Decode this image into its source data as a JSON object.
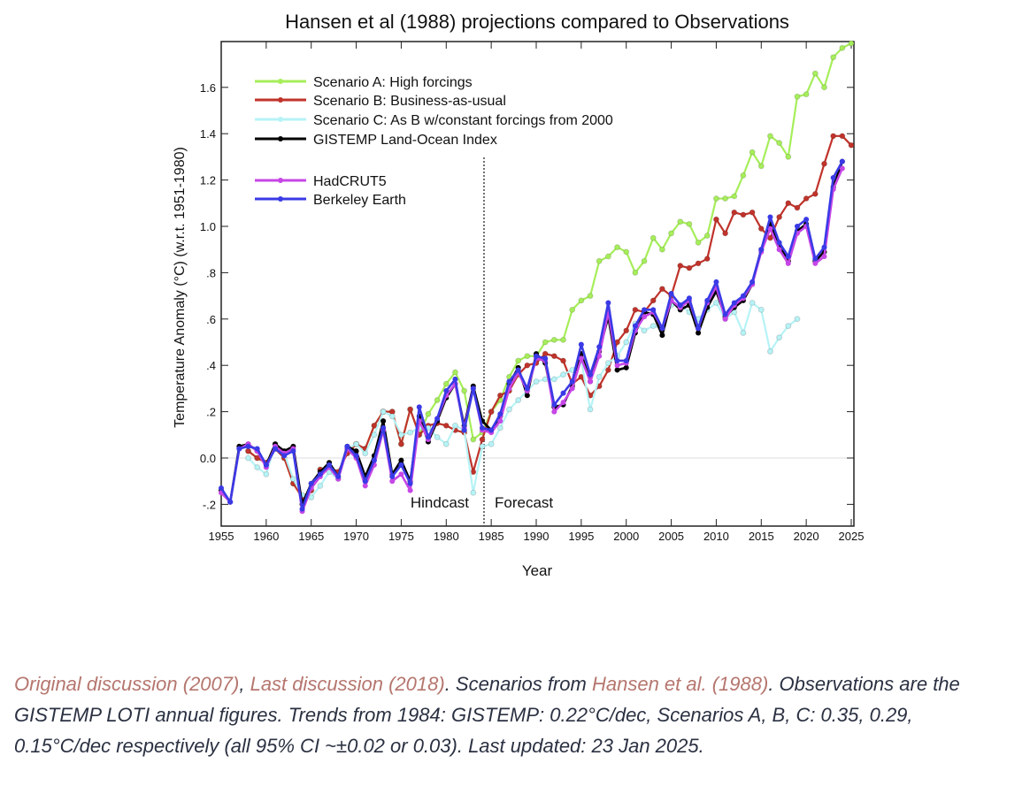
{
  "chart_data": {
    "type": "line",
    "title": "Hansen et al (1988) projections compared to Observations",
    "xlabel": "Year",
    "ylabel": "Temperature Anomaly (°C) (w.r.t. 1951-1980)",
    "xlim": [
      1955,
      2025
    ],
    "ylim": [
      -0.3,
      1.8
    ],
    "xticks": [
      1955,
      1960,
      1965,
      1970,
      1975,
      1980,
      1985,
      1990,
      1995,
      2000,
      2005,
      2010,
      2015,
      2020,
      2025
    ],
    "yticks": [
      -0.2,
      0.0,
      0.2,
      0.4,
      0.6,
      0.8,
      1.0,
      1.2,
      1.4,
      1.6
    ],
    "ytick_labels": [
      "-.2",
      "0.0",
      ".2",
      ".4",
      ".6",
      ".8",
      "1.0",
      "1.2",
      "1.4",
      "1.6"
    ],
    "legend_position": "top-left",
    "annotations": {
      "divider_year": 1984,
      "hindcast": "Hindcast",
      "forecast": "Forecast"
    },
    "series": [
      {
        "name": "Scenario A: High forcings",
        "color": "#a6ee5a",
        "x_start": 1958,
        "values": [
          0.03,
          0.0,
          -0.02,
          0.04,
          0.0,
          -0.11,
          -0.17,
          -0.14,
          -0.05,
          -0.04,
          -0.06,
          0.02,
          0.06,
          0.04,
          0.14,
          0.2,
          0.2,
          0.06,
          0.21,
          0.1,
          0.19,
          0.25,
          0.32,
          0.37,
          0.29,
          0.08,
          0.11,
          0.2,
          0.25,
          0.35,
          0.42,
          0.44,
          0.44,
          0.5,
          0.51,
          0.51,
          0.64,
          0.68,
          0.7,
          0.85,
          0.87,
          0.91,
          0.89,
          0.8,
          0.85,
          0.95,
          0.9,
          0.97,
          1.02,
          1.01,
          0.93,
          0.96,
          1.12,
          1.12,
          1.13,
          1.22,
          1.32,
          1.26,
          1.39,
          1.36,
          1.3,
          1.56,
          1.57,
          1.66,
          1.6,
          1.73,
          1.77,
          1.79
        ]
      },
      {
        "name": "Scenario B: Business-as-usual",
        "color": "#c0332b",
        "x_start": 1958,
        "values": [
          0.03,
          0.0,
          -0.02,
          0.04,
          0.0,
          -0.11,
          -0.17,
          -0.14,
          -0.05,
          -0.04,
          -0.06,
          0.02,
          0.06,
          0.04,
          0.14,
          0.2,
          0.2,
          0.06,
          0.21,
          0.1,
          0.14,
          0.15,
          0.14,
          0.12,
          0.11,
          -0.06,
          0.08,
          0.2,
          0.27,
          0.29,
          0.36,
          0.4,
          0.41,
          0.45,
          0.44,
          0.42,
          0.32,
          0.35,
          0.27,
          0.31,
          0.38,
          0.5,
          0.55,
          0.64,
          0.63,
          0.68,
          0.73,
          0.7,
          0.83,
          0.82,
          0.84,
          0.86,
          1.03,
          0.97,
          1.06,
          1.05,
          1.06,
          0.99,
          0.95,
          1.04,
          1.1,
          1.08,
          1.12,
          1.14,
          1.27,
          1.39,
          1.39,
          1.35
        ]
      },
      {
        "name": "Scenario C: As B w/constant forcings from 2000",
        "color": "#b6f3f6",
        "x_start": 1958,
        "values": [
          0.0,
          -0.04,
          -0.07,
          0.06,
          0.02,
          -0.09,
          -0.16,
          -0.17,
          -0.12,
          -0.06,
          -0.09,
          0.04,
          0.06,
          0.02,
          0.1,
          0.2,
          0.18,
          0.1,
          0.11,
          0.13,
          0.13,
          0.09,
          0.06,
          0.14,
          0.12,
          -0.15,
          0.05,
          0.06,
          0.13,
          0.21,
          0.25,
          0.29,
          0.33,
          0.34,
          0.34,
          0.36,
          0.38,
          0.42,
          0.21,
          0.35,
          0.41,
          0.44,
          0.5,
          0.58,
          0.55,
          0.57,
          0.56,
          0.66,
          0.66,
          0.63,
          0.6,
          0.64,
          0.67,
          0.6,
          0.63,
          0.54,
          0.67,
          0.64,
          0.46,
          0.52,
          0.57,
          0.6
        ]
      },
      {
        "name": "GISTEMP Land-Ocean Index",
        "color": "#000000",
        "x_start": 1955,
        "values": [
          -0.14,
          -0.19,
          0.05,
          0.06,
          0.03,
          -0.03,
          0.06,
          0.03,
          0.05,
          -0.2,
          -0.11,
          -0.06,
          -0.02,
          -0.08,
          0.05,
          0.03,
          -0.08,
          0.01,
          0.16,
          -0.07,
          -0.01,
          -0.1,
          0.18,
          0.07,
          0.16,
          0.26,
          0.32,
          0.14,
          0.31,
          0.16,
          0.12,
          0.18,
          0.32,
          0.39,
          0.27,
          0.45,
          0.41,
          0.22,
          0.23,
          0.31,
          0.45,
          0.33,
          0.46,
          0.61,
          0.38,
          0.39,
          0.54,
          0.63,
          0.62,
          0.53,
          0.68,
          0.64,
          0.66,
          0.54,
          0.65,
          0.72,
          0.61,
          0.65,
          0.68,
          0.75,
          0.9,
          1.01,
          0.92,
          0.85,
          0.98,
          1.01,
          0.85,
          0.89,
          1.17,
          1.28
        ]
      },
      {
        "name": "HadCRUT5",
        "color": "#c646e6",
        "x_start": 1955,
        "values": [
          -0.15,
          -0.19,
          0.04,
          0.06,
          0.03,
          -0.04,
          0.05,
          0.02,
          0.04,
          -0.23,
          -0.13,
          -0.08,
          -0.04,
          -0.09,
          0.04,
          0.0,
          -0.12,
          -0.03,
          0.12,
          -0.1,
          -0.07,
          -0.14,
          0.16,
          0.08,
          0.17,
          0.27,
          0.32,
          0.13,
          0.3,
          0.12,
          0.11,
          0.16,
          0.3,
          0.37,
          0.29,
          0.43,
          0.42,
          0.2,
          0.24,
          0.3,
          0.43,
          0.33,
          0.44,
          0.63,
          0.4,
          0.41,
          0.55,
          0.61,
          0.63,
          0.56,
          0.68,
          0.65,
          0.68,
          0.56,
          0.67,
          0.74,
          0.6,
          0.66,
          0.69,
          0.75,
          0.89,
          0.99,
          0.9,
          0.84,
          0.97,
          1.0,
          0.84,
          0.87,
          1.16,
          1.25
        ]
      },
      {
        "name": "Berkeley Earth",
        "color": "#3a3ae6",
        "x_start": 1955,
        "values": [
          -0.13,
          -0.19,
          0.04,
          0.05,
          0.04,
          -0.03,
          0.04,
          0.01,
          0.03,
          -0.22,
          -0.11,
          -0.07,
          -0.03,
          -0.08,
          0.05,
          0.01,
          -0.1,
          -0.01,
          0.13,
          -0.08,
          -0.03,
          -0.11,
          0.22,
          0.09,
          0.17,
          0.29,
          0.34,
          0.12,
          0.3,
          0.13,
          0.12,
          0.19,
          0.33,
          0.38,
          0.3,
          0.44,
          0.43,
          0.23,
          0.28,
          0.33,
          0.49,
          0.36,
          0.48,
          0.67,
          0.42,
          0.42,
          0.57,
          0.64,
          0.64,
          0.56,
          0.71,
          0.66,
          0.69,
          0.56,
          0.68,
          0.76,
          0.62,
          0.67,
          0.7,
          0.76,
          0.9,
          1.04,
          0.93,
          0.87,
          1.0,
          1.03,
          0.86,
          0.91,
          1.21,
          1.28
        ]
      }
    ]
  },
  "caption": {
    "link1": "Original discussion (2007)",
    "sep1": ", ",
    "link2": "Last discussion (2018)",
    "text1": ". Scenarios from ",
    "link3": "Hansen et al. (1988)",
    "text2": ". Observations are the GISTEMP LOTI annual figures. Trends from 1984: GISTEMP: 0.22°C/dec, Scenarios A, B, C: 0.35, 0.29, 0.15°C/dec respectively (all 95% CI ~±0.02 or 0.03). Last updated: 23 Jan 2025."
  }
}
